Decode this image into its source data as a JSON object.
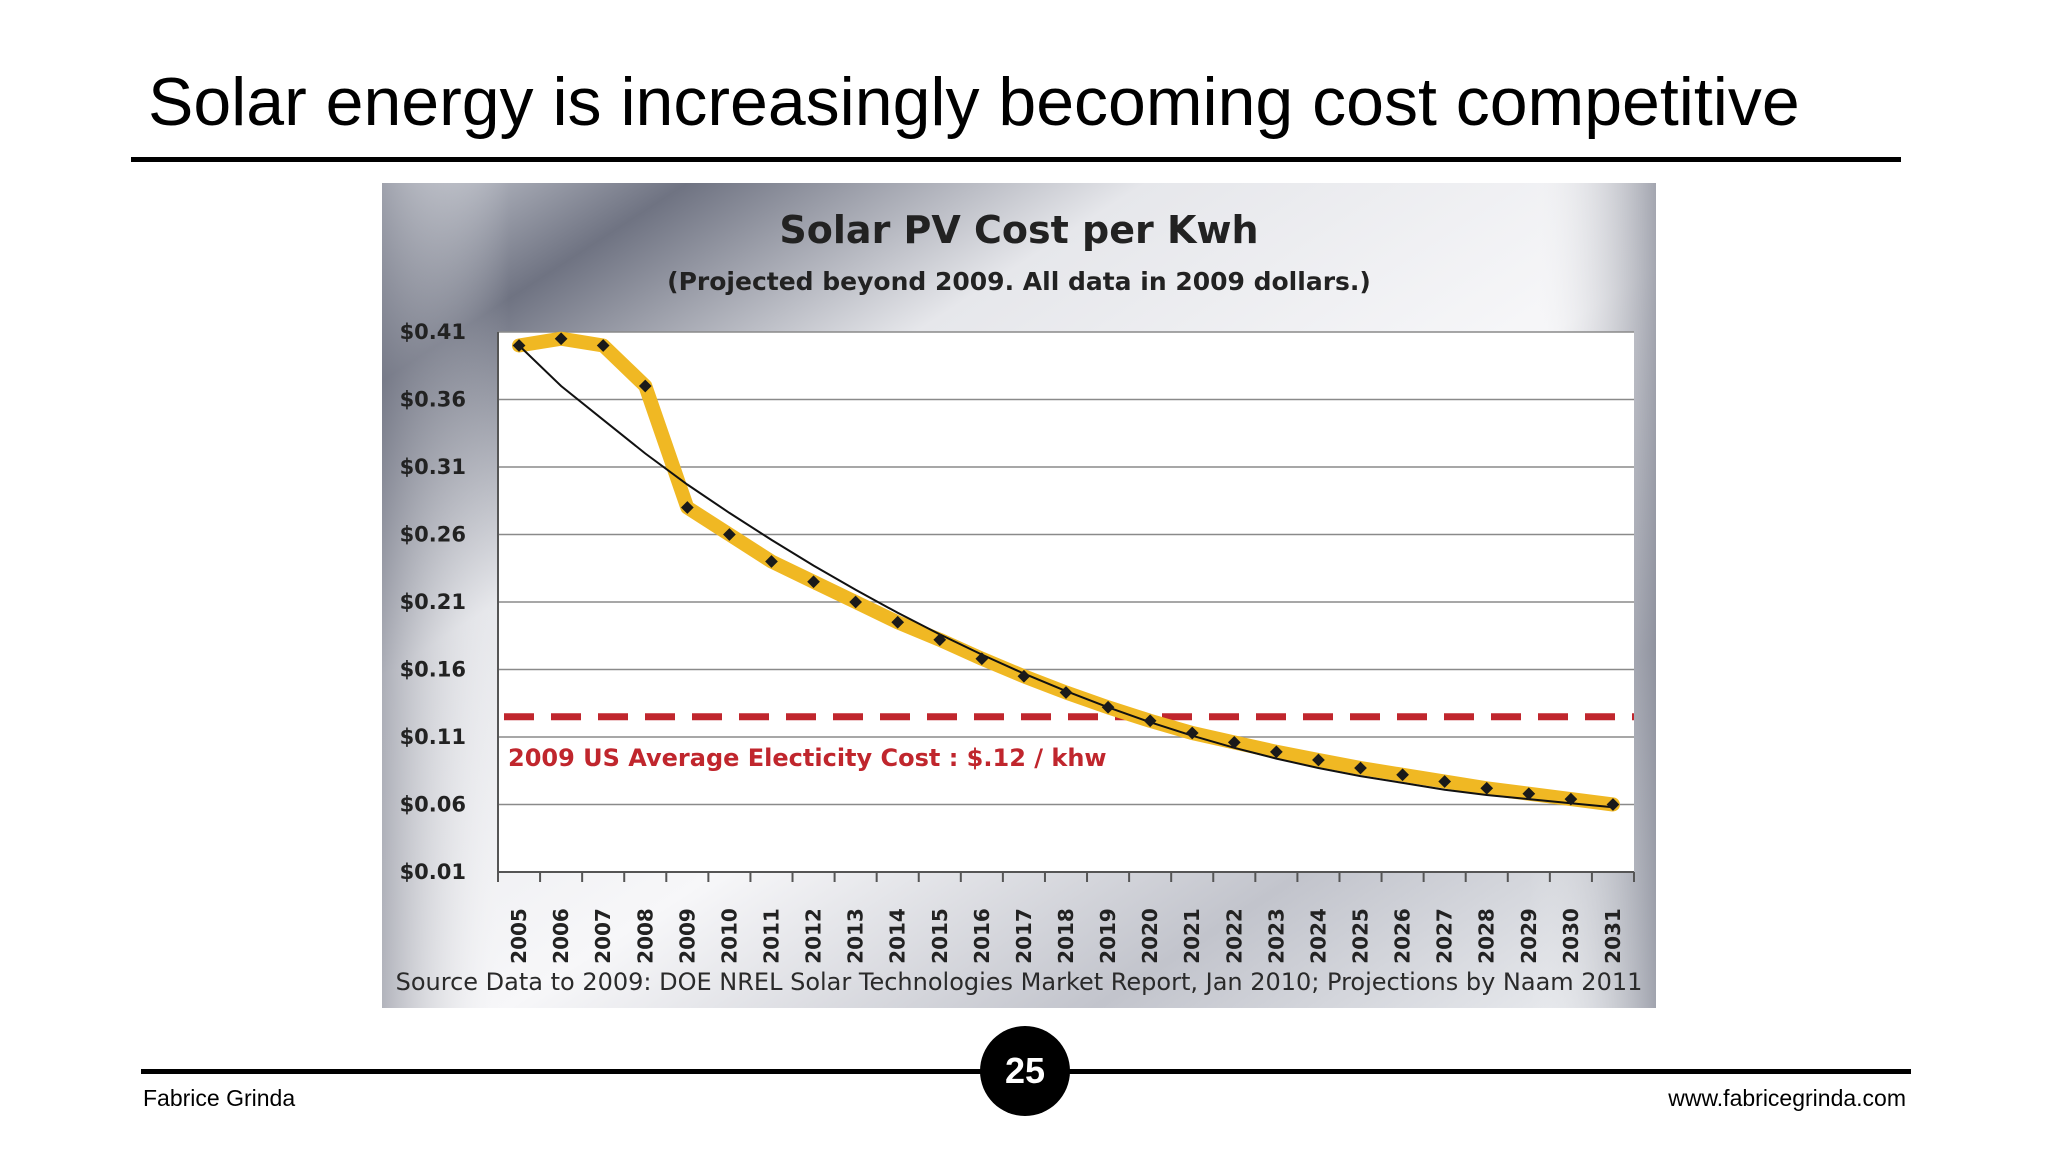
{
  "slide": {
    "title": "Solar energy is increasingly becoming cost competitive",
    "page_number": "25",
    "footer_left": "Fabrice Grinda",
    "footer_right": "www.fabricegrinda.com"
  },
  "colors": {
    "series": "#f0b823",
    "markers": "#1a1a1a",
    "trend": "#111111",
    "reference": "#c0262d",
    "plot_background": "#ffffff",
    "gridlines": "#8a8a8a"
  },
  "chart_data": {
    "type": "line",
    "title": "Solar PV Cost per Kwh",
    "subtitle": "(Projected beyond 2009.  All data in 2009 dollars.)",
    "xlabel": "",
    "ylabel": "",
    "x": [
      "2005",
      "2006",
      "2007",
      "2008",
      "2009",
      "2010",
      "2011",
      "2012",
      "2013",
      "2014",
      "2015",
      "2016",
      "2017",
      "2018",
      "2019",
      "2020",
      "2021",
      "2022",
      "2023",
      "2024",
      "2025",
      "2026",
      "2027",
      "2028",
      "2029",
      "2030",
      "2031"
    ],
    "y_ticks": [
      "$0.41",
      "$0.36",
      "$0.31",
      "$0.26",
      "$0.21",
      "$0.16",
      "$0.11",
      "$0.06",
      "$0.01"
    ],
    "ylim": [
      0.01,
      0.41
    ],
    "grid": true,
    "legend": "none",
    "series": [
      {
        "values": [
          0.4,
          0.405,
          0.4,
          0.37,
          0.28,
          0.26,
          0.24,
          0.225,
          0.21,
          0.195,
          0.182,
          0.168,
          0.155,
          0.143,
          0.132,
          0.122,
          0.113,
          0.106,
          0.099,
          0.093,
          0.087,
          0.082,
          0.077,
          0.072,
          0.068,
          0.064,
          0.06
        ]
      },
      {
        "values": [
          0.4,
          0.37,
          0.345,
          0.32,
          0.297,
          0.276,
          0.256,
          0.237,
          0.219,
          0.202,
          0.186,
          0.171,
          0.157,
          0.144,
          0.132,
          0.121,
          0.111,
          0.102,
          0.094,
          0.087,
          0.081,
          0.076,
          0.071,
          0.067,
          0.064,
          0.061,
          0.058
        ]
      }
    ],
    "reference_line": {
      "value": 0.125,
      "label": "2009 US Average Electicity Cost : $.12 / khw"
    },
    "source": "Source Data to 2009:  DOE NREL Solar Technologies   Market Report, Jan 2010;  Projections by Naam 2011"
  }
}
